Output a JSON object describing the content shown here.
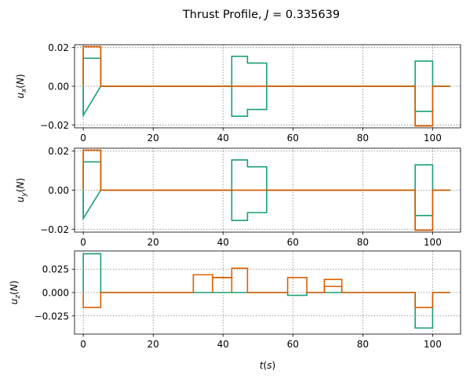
{
  "title": "Thrust Profile, J = 0.335639",
  "colors": {
    "series_a": "#1b9e77",
    "series_b": "#d95f02",
    "grid": "#808080",
    "axes": "#000000"
  },
  "chart_data": [
    {
      "type": "line",
      "ylabel": "u_x(N)",
      "xlim": [
        -2.5,
        108
      ],
      "ylim": [
        -0.0215,
        0.0215
      ],
      "xticks": [
        0,
        20,
        40,
        60,
        80,
        100
      ],
      "yticks": [
        -0.02,
        0.0,
        0.02
      ],
      "ytick_labels": [
        "−0.02",
        "0.00",
        "0.02"
      ],
      "grid": true,
      "series": [
        {
          "color": "#1b9e77",
          "x": [
            0,
            0,
            0,
            5,
            5,
            42.5,
            42.5,
            47,
            47,
            52.5,
            52.5,
            95,
            95,
            100,
            100,
            105
          ],
          "y": [
            0,
            -0.015,
            0.0145,
            0.0145,
            0,
            0,
            0.0155,
            0.0155,
            0.012,
            0.012,
            0,
            0,
            0.013,
            0.013,
            0,
            0
          ],
          "y_mirror": [
            0,
            -0.015,
            -0.015,
            0,
            0,
            0,
            -0.0155,
            -0.0155,
            -0.012,
            -0.012,
            0,
            0,
            -0.013,
            -0.013,
            0,
            0
          ]
        },
        {
          "color": "#d95f02",
          "x": [
            0,
            0,
            5,
            5,
            95,
            95,
            100,
            100,
            105
          ],
          "y": [
            0,
            0.0205,
            0.0205,
            0,
            0,
            -0.0205,
            -0.0205,
            0,
            0
          ],
          "y_mirror": [
            0,
            0.0205,
            0.0205,
            0,
            0,
            -0.0205,
            -0.0205,
            0,
            0
          ]
        }
      ]
    },
    {
      "type": "line",
      "ylabel": "u_y(N)",
      "xlim": [
        -2.5,
        108
      ],
      "ylim": [
        -0.0215,
        0.0215
      ],
      "xticks": [
        0,
        20,
        40,
        60,
        80,
        100
      ],
      "yticks": [
        -0.02,
        0.0,
        0.02
      ],
      "ytick_labels": [
        "−0.02",
        "0.00",
        "0.02"
      ],
      "grid": true,
      "series": [
        {
          "color": "#1b9e77",
          "x": [
            0,
            0,
            0,
            5,
            5,
            42.5,
            42.5,
            47,
            47,
            52.5,
            52.5,
            95,
            95,
            100,
            100,
            105
          ],
          "y": [
            0,
            -0.0145,
            0.0145,
            0.0145,
            0,
            0,
            0.0155,
            0.0155,
            0.012,
            0.012,
            0,
            0,
            0.013,
            0.013,
            0,
            0
          ],
          "y_mirror": [
            0,
            -0.0145,
            -0.0145,
            0,
            0,
            0,
            -0.0155,
            -0.0155,
            -0.0115,
            -0.0115,
            0,
            0,
            -0.013,
            -0.013,
            0,
            0
          ]
        },
        {
          "color": "#d95f02",
          "x": [
            0,
            0,
            5,
            5,
            95,
            95,
            100,
            100,
            105
          ],
          "y": [
            0,
            0.0205,
            0.0205,
            0,
            0,
            -0.0205,
            -0.0205,
            0,
            0
          ],
          "y_mirror": [
            0,
            0.0205,
            0.0205,
            0,
            0,
            -0.0205,
            -0.0205,
            0,
            0
          ]
        }
      ]
    },
    {
      "type": "line",
      "ylabel": "u_z(N)",
      "xlabel": "t(s)",
      "xlim": [
        -2.5,
        108
      ],
      "ylim": [
        -0.0445,
        0.0445
      ],
      "xticks": [
        0,
        20,
        40,
        60,
        80,
        100
      ],
      "yticks": [
        -0.025,
        0.0,
        0.025
      ],
      "ytick_labels": [
        "−0.025",
        "0.000",
        "0.025"
      ],
      "grid": true,
      "series": [
        {
          "color": "#1b9e77",
          "x": [
            0,
            0,
            5,
            5,
            58.5,
            58.5,
            64,
            64,
            95,
            95,
            100,
            100,
            105
          ],
          "y": [
            0,
            0.0415,
            0.0415,
            0,
            0,
            -0.003,
            -0.003,
            0,
            0,
            -0.038,
            -0.038,
            0,
            0
          ]
        },
        {
          "color": "#d95f02",
          "x": [
            0,
            0,
            5,
            5,
            31.5,
            31.5,
            37,
            37,
            42.5,
            42.5,
            47,
            47,
            58.5,
            58.5,
            64,
            64,
            69,
            69,
            74,
            74,
            95,
            95,
            100,
            100,
            105
          ],
          "y": [
            0,
            -0.016,
            -0.016,
            0,
            0,
            0.019,
            0.019,
            0.016,
            0.016,
            0.026,
            0.026,
            0,
            0,
            0.016,
            0.016,
            0,
            0,
            0.014,
            0.014,
            0,
            0,
            -0.016,
            -0.016,
            0,
            0
          ],
          "extra_boxes": [
            {
              "x": [
                37,
                37,
                42.5,
                42.5
              ],
              "y": [
                0,
                0.016,
                0.016,
                0
              ]
            },
            {
              "x": [
                69,
                69,
                74,
                74
              ],
              "y": [
                0,
                0.0065,
                0.0065,
                0
              ]
            }
          ]
        }
      ]
    }
  ]
}
